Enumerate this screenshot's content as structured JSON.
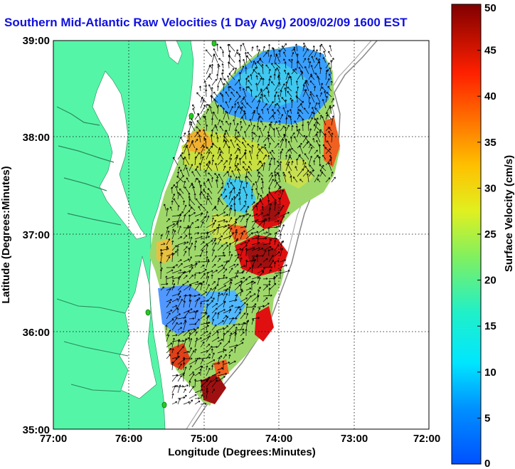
{
  "title": "Southern Mid-Atlantic Raw Velocities (1 Day Avg) 2009/02/09 1600 EST",
  "xlabel": "Longitude (Degrees:Minutes)",
  "ylabel": "Latitude (Degrees:Minutes)",
  "xticks": [
    "77:00",
    "76:00",
    "75:00",
    "74:00",
    "73:00",
    "72:00"
  ],
  "yticks": [
    "39:00",
    "38:00",
    "37:00",
    "36:00",
    "35:00"
  ],
  "colorbar": {
    "label": "Surface Velocity (cm/s)",
    "ticks": [
      "0",
      "5",
      "10",
      "15",
      "20",
      "25",
      "30",
      "35",
      "40",
      "45",
      "50"
    ],
    "min": 0,
    "max": 50
  },
  "colors": {
    "land": "#55f5a8",
    "title": "#1010e0",
    "site_marker": "#22cc22"
  }
}
